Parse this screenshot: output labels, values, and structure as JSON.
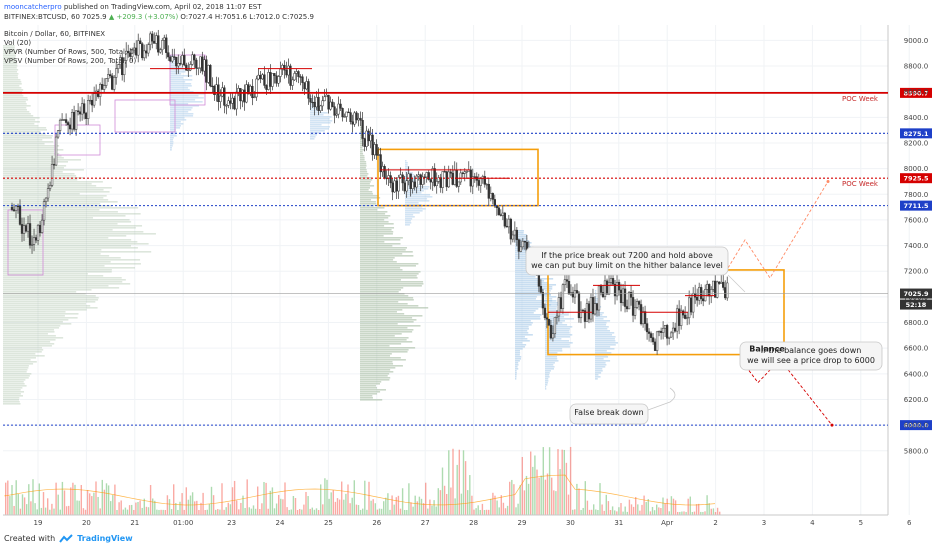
{
  "header": {
    "author": "mooncatcherpro",
    "published": "published on TradingView.com, April 02, 2018 11:07 EST",
    "symbol": "BITFINEX:BTCUSD, 60",
    "last": "7025.9",
    "change": "+209.3 (+3.07%)",
    "ohlc": "O:7027.4  H:7051.6  L:7012.0  C:7025.9",
    "legend": [
      "Bitcoin / Dollar, 60, BITFINEX",
      "Vol (20)",
      "VPVR (Number Of Rows, 500, Total, 0)",
      "VPSV (Number Of Rows, 200, Total, 0)"
    ]
  },
  "footer": {
    "created_with": "Created with",
    "brand": "TradingView"
  },
  "colors": {
    "up": "#4caf50",
    "down": "#f44336",
    "candle": "#333333",
    "poc_red": "#d50000",
    "level_blue": "#1e40c8",
    "box_orange": "#f59e0b",
    "vp_green": "#9fb79a",
    "vp_blue": "#9cc3e6"
  },
  "chart_data": {
    "type": "candlestick",
    "x_ticks": [
      "19",
      "20",
      "21",
      "01:00",
      "23",
      "24",
      "25",
      "26",
      "27",
      "28",
      "29",
      "30",
      "31",
      "Apr",
      "2",
      "3",
      "4",
      "5",
      "6"
    ],
    "y_ticks": [
      5800,
      6000,
      6200,
      6400,
      6600,
      6800,
      7000,
      7200,
      7400,
      7600,
      7800,
      8000,
      8200,
      8400,
      8600,
      8800,
      9000
    ],
    "ylim": [
      5650,
      9120
    ],
    "last_price": "7025.9",
    "countdown": "52:18",
    "levels": [
      {
        "value": 8590.7,
        "label": "8590.7",
        "style": "red-solid",
        "note": "POC Week"
      },
      {
        "value": 8275.1,
        "label": "8275.1",
        "style": "blue-dotted"
      },
      {
        "value": 7925.5,
        "label": "7925.5",
        "style": "red-dotted",
        "note": "POC Week"
      },
      {
        "value": 7711.5,
        "label": "7711.5",
        "style": "blue-dotted"
      },
      {
        "value": 6000.0,
        "label": "6000.0",
        "style": "blue-dotted"
      }
    ],
    "balance_boxes": [
      {
        "from": "Mar 26",
        "to": "Mar 28",
        "low": 7711.5,
        "high": 8150
      },
      {
        "from": "Mar 30",
        "to": "Apr 3",
        "low": 6550,
        "high": 7210,
        "label": "Balance"
      }
    ],
    "projection": {
      "bull_target": 7900,
      "bear_target": 6000
    },
    "annotations": [
      {
        "id": "breakout",
        "lines": [
          "If the price break out 7200 and hold above",
          "we can put buy limit on the hither balance level"
        ]
      },
      {
        "id": "breakdown",
        "lines": [
          "If the balance goes down",
          "we will see a price drop to 6000"
        ]
      },
      {
        "id": "false-break",
        "lines": [
          "False break down"
        ]
      }
    ],
    "price_path": [
      [
        0,
        7700
      ],
      [
        0.5,
        7400
      ],
      [
        1,
        8300
      ],
      [
        1.5,
        8450
      ],
      [
        2,
        8650
      ],
      [
        2.5,
        8900
      ],
      [
        3,
        9000
      ],
      [
        3.5,
        8850
      ],
      [
        4,
        8800
      ],
      [
        4.5,
        8500
      ],
      [
        5,
        8600
      ],
      [
        5.5,
        8750
      ],
      [
        6,
        8700
      ],
      [
        6.5,
        8500
      ],
      [
        7,
        8450
      ],
      [
        7.5,
        8200
      ],
      [
        8,
        7850
      ],
      [
        8.5,
        7950
      ],
      [
        9,
        7900
      ],
      [
        9.5,
        7950
      ],
      [
        10,
        7850
      ],
      [
        10.5,
        7500
      ],
      [
        11,
        7200
      ],
      [
        11.3,
        6700
      ],
      [
        11.6,
        7100
      ],
      [
        12,
        6850
      ],
      [
        12.5,
        7100
      ],
      [
        13,
        6950
      ],
      [
        13.5,
        6650
      ],
      [
        14,
        6850
      ],
      [
        14.5,
        7050
      ],
      [
        15,
        7030
      ]
    ]
  }
}
